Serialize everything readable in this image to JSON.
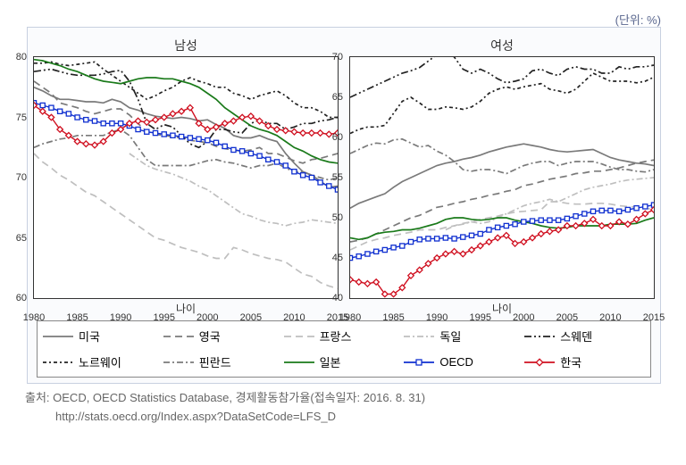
{
  "unit_label": "(단위: %)",
  "panels": {
    "left": {
      "title": "남성",
      "xlabel": "나이"
    },
    "right": {
      "title": "여성",
      "xlabel": "나이"
    }
  },
  "source_line1": "출처: OECD, OECD Statistics Database, 경제활동참가율(접속일자: 2016. 8. 31)",
  "source_line2": "http://stats.oecd.org/Index.aspx?DataSetCode=LFS_D",
  "xaxis": {
    "min": 1980,
    "max": 2015,
    "tick_step": 5
  },
  "yaxis_left": {
    "min": 60,
    "max": 80,
    "tick_step": 5
  },
  "yaxis_right": {
    "min": 40,
    "max": 70,
    "tick_step": 5
  },
  "colors": {
    "usa": "#7a7a7a",
    "uk": "#7a7a7a",
    "france": "#bfbfbf",
    "germany": "#bfbfbf",
    "sweden": "#222222",
    "norway": "#222222",
    "finland": "#7a7a7a",
    "japan": "#1a7a1a",
    "oecd": "#1030d0",
    "korea": "#d01020",
    "border": "#333",
    "frame_bg": "#fafbfd"
  },
  "legend": [
    {
      "label": "미국",
      "style": "solid",
      "color": "#7a7a7a",
      "marker": null
    },
    {
      "label": "영국",
      "style": "longdash",
      "color": "#7a7a7a",
      "marker": null
    },
    {
      "label": "프랑스",
      "style": "longdash",
      "color": "#bfbfbf",
      "marker": null
    },
    {
      "label": "독일",
      "style": "dashdot",
      "color": "#bfbfbf",
      "marker": null
    },
    {
      "label": "스웨덴",
      "style": "dashdotdot",
      "color": "#222222",
      "marker": null
    },
    {
      "label": "노르웨이",
      "style": "shortdashdot",
      "color": "#222222",
      "marker": null
    },
    {
      "label": "핀란드",
      "style": "dashdot",
      "color": "#7a7a7a",
      "marker": null
    },
    {
      "label": "일본",
      "style": "solid",
      "color": "#1a7a1a",
      "marker": null
    },
    {
      "label": "OECD",
      "style": "solid",
      "color": "#1030d0",
      "marker": "square"
    },
    {
      "label": "한국",
      "style": "solid",
      "color": "#d01020",
      "marker": "diamond"
    }
  ],
  "dash_map": {
    "solid": "",
    "longdash": "8 5",
    "dashdot": "7 3 2 3",
    "dashdotdot": "8 3 2 3 2 3",
    "shortdashdot": "4 3 2 3"
  },
  "series": {
    "years": [
      1980,
      1981,
      1982,
      1983,
      1984,
      1985,
      1986,
      1987,
      1988,
      1989,
      1990,
      1991,
      1992,
      1993,
      1994,
      1995,
      1996,
      1997,
      1998,
      1999,
      2000,
      2001,
      2002,
      2003,
      2004,
      2005,
      2006,
      2007,
      2008,
      2009,
      2010,
      2011,
      2012,
      2013,
      2014,
      2015
    ],
    "male": {
      "usa": [
        77.5,
        77.2,
        76.8,
        76.5,
        76.5,
        76.4,
        76.3,
        76.3,
        76.2,
        76.5,
        76.3,
        75.8,
        75.6,
        75.3,
        75.1,
        75.0,
        74.9,
        75.0,
        74.9,
        74.7,
        74.8,
        74.4,
        74.1,
        73.5,
        73.3,
        73.3,
        73.5,
        73.2,
        73.0,
        72.0,
        71.2,
        70.5,
        70.2,
        69.7,
        69.2,
        69.3
      ],
      "uk": [
        78.0,
        77.5,
        77.0,
        76.2,
        76.0,
        75.8,
        75.5,
        75.3,
        75.5,
        75.7,
        75.7,
        75.2,
        74.5,
        73.8,
        73.6,
        73.5,
        73.4,
        73.3,
        73.1,
        73.0,
        72.9,
        72.6,
        72.4,
        72.3,
        72.2,
        72.3,
        72.5,
        72.0,
        72.0,
        71.7,
        71.4,
        71.2,
        71.5,
        71.6,
        71.8,
        72.0
      ],
      "france": [
        72.0,
        71.3,
        70.8,
        70.2,
        69.8,
        69.3,
        68.8,
        68.5,
        68.0,
        67.5,
        67.0,
        66.5,
        66.0,
        65.5,
        65.0,
        64.8,
        64.5,
        64.2,
        64.0,
        63.8,
        63.5,
        63.3,
        63.3,
        64.2,
        64.0,
        63.7,
        63.5,
        63.3,
        63.2,
        63.0,
        62.5,
        62.0,
        61.8,
        61.3,
        61.0,
        60.8
      ],
      "germany": [
        null,
        null,
        null,
        null,
        null,
        null,
        null,
        null,
        null,
        null,
        null,
        72.0,
        71.5,
        71.0,
        70.7,
        70.5,
        70.3,
        70.0,
        69.7,
        69.3,
        69.0,
        68.5,
        68.0,
        67.5,
        67.0,
        66.8,
        66.5,
        66.3,
        66.2,
        66.0,
        66.2,
        66.3,
        66.5,
        66.4,
        66.3,
        66.2
      ],
      "sweden": [
        78.8,
        78.9,
        79.0,
        78.8,
        78.6,
        78.5,
        78.5,
        78.5,
        78.6,
        78.8,
        78.9,
        78.0,
        76.5,
        74.5,
        74.0,
        74.4,
        74.2,
        73.5,
        72.8,
        72.5,
        73.0,
        74.0,
        74.0,
        73.8,
        73.7,
        74.5,
        74.8,
        74.5,
        74.5,
        74.0,
        74.2,
        74.5,
        74.5,
        74.7,
        74.8,
        75.0
      ],
      "norway": [
        79.5,
        79.5,
        79.6,
        79.4,
        79.3,
        79.4,
        79.5,
        79.6,
        79.0,
        78.5,
        78.0,
        77.5,
        77.0,
        76.5,
        76.8,
        77.2,
        77.5,
        78.0,
        78.3,
        78.0,
        77.8,
        77.5,
        77.5,
        77.0,
        76.8,
        76.5,
        76.8,
        77.0,
        77.2,
        76.8,
        76.2,
        75.8,
        75.8,
        75.5,
        75.0,
        75.0
      ],
      "finland": [
        72.5,
        72.8,
        73.0,
        73.2,
        73.3,
        73.5,
        73.5,
        73.5,
        73.5,
        73.8,
        74.0,
        73.5,
        72.5,
        71.5,
        71.0,
        71.0,
        71.0,
        71.0,
        71.0,
        71.2,
        71.4,
        71.5,
        71.3,
        71.2,
        71.0,
        70.8,
        71.0,
        71.0,
        71.2,
        70.8,
        70.5,
        70.5,
        70.2,
        70.0,
        69.8,
        70.0
      ],
      "japan": [
        79.8,
        79.7,
        79.5,
        79.3,
        79.0,
        78.8,
        78.5,
        78.2,
        78.0,
        77.9,
        77.8,
        78.0,
        78.2,
        78.3,
        78.3,
        78.2,
        78.2,
        78.0,
        77.8,
        77.5,
        77.0,
        76.5,
        75.8,
        75.3,
        74.8,
        74.3,
        74.0,
        73.8,
        73.5,
        73.0,
        72.5,
        72.2,
        71.8,
        71.5,
        71.3,
        71.2
      ],
      "oecd": [
        76.2,
        76.0,
        75.8,
        75.5,
        75.3,
        75.0,
        74.8,
        74.7,
        74.5,
        74.5,
        74.5,
        74.3,
        74.0,
        73.8,
        73.7,
        73.6,
        73.5,
        73.4,
        73.3,
        73.2,
        73.1,
        72.9,
        72.6,
        72.3,
        72.2,
        72.0,
        71.8,
        71.5,
        71.3,
        71.0,
        70.5,
        70.2,
        70.0,
        69.6,
        69.3,
        69.0
      ],
      "korea": [
        76.0,
        75.5,
        75.0,
        74.0,
        73.5,
        73.0,
        72.8,
        72.7,
        73.0,
        73.7,
        74.0,
        74.5,
        74.7,
        74.6,
        74.8,
        75.0,
        75.3,
        75.5,
        75.8,
        74.5,
        74.0,
        74.2,
        74.5,
        74.7,
        75.0,
        75.1,
        74.7,
        74.3,
        74.0,
        73.9,
        73.8,
        73.7,
        73.7,
        73.7,
        73.6,
        73.7
      ]
    },
    "female": {
      "usa": [
        51.2,
        51.8,
        52.2,
        52.6,
        53.0,
        53.8,
        54.5,
        55.0,
        55.5,
        56.0,
        56.5,
        56.8,
        57.0,
        57.3,
        57.5,
        57.8,
        58.2,
        58.5,
        58.8,
        59.0,
        59.2,
        59.0,
        58.8,
        58.5,
        58.3,
        58.2,
        58.3,
        58.4,
        58.5,
        58.0,
        57.5,
        57.2,
        57.0,
        56.8,
        56.7,
        56.5
      ],
      "uk": [
        47.0,
        47.2,
        47.5,
        48.0,
        48.5,
        49.0,
        49.5,
        50.0,
        50.3,
        50.8,
        51.3,
        51.5,
        51.8,
        52.0,
        52.3,
        52.5,
        52.8,
        53.0,
        53.3,
        53.5,
        54.0,
        54.2,
        54.5,
        54.8,
        55.0,
        55.2,
        55.5,
        55.6,
        55.8,
        55.8,
        56.0,
        56.2,
        56.5,
        56.8,
        57.0,
        57.2
      ],
      "france": [
        46.0,
        46.5,
        47.0,
        47.3,
        47.5,
        47.8,
        48.0,
        48.2,
        48.5,
        48.5,
        48.5,
        48.8,
        49.0,
        49.3,
        49.5,
        49.8,
        50.0,
        50.2,
        50.5,
        50.7,
        50.8,
        50.9,
        51.0,
        52.0,
        52.0,
        51.8,
        51.7,
        51.7,
        51.8,
        51.8,
        51.7,
        51.5,
        51.4,
        51.3,
        51.2,
        51.0
      ],
      "germany": [
        null,
        null,
        null,
        null,
        null,
        null,
        null,
        null,
        null,
        null,
        null,
        48.5,
        49.0,
        49.2,
        49.5,
        49.3,
        49.5,
        50.0,
        50.5,
        51.0,
        51.5,
        51.8,
        52.0,
        52.3,
        52.0,
        52.5,
        53.0,
        53.5,
        53.8,
        54.0,
        54.2,
        54.5,
        54.7,
        54.8,
        54.9,
        55.0
      ],
      "sweden": [
        65.0,
        65.5,
        66.0,
        66.5,
        67.0,
        67.5,
        68.0,
        68.3,
        68.7,
        69.5,
        70.3,
        70.8,
        70.0,
        68.5,
        68.0,
        68.5,
        68.0,
        67.3,
        66.8,
        67.0,
        67.3,
        68.3,
        68.5,
        68.0,
        67.7,
        68.5,
        68.8,
        68.5,
        68.5,
        68.0,
        68.0,
        68.8,
        68.5,
        68.8,
        68.8,
        69.0
      ],
      "norway": [
        60.5,
        61.0,
        61.3,
        61.3,
        61.5,
        63.0,
        64.5,
        65.0,
        64.3,
        63.5,
        63.5,
        63.8,
        63.7,
        63.5,
        63.8,
        64.5,
        65.5,
        66.0,
        66.3,
        66.0,
        66.3,
        66.5,
        66.7,
        66.0,
        65.8,
        65.5,
        66.0,
        67.0,
        68.0,
        67.5,
        67.0,
        67.0,
        67.0,
        66.8,
        67.0,
        67.5
      ],
      "finland": [
        58.0,
        58.5,
        59.0,
        59.3,
        59.2,
        59.7,
        59.8,
        59.3,
        58.8,
        59.0,
        58.3,
        57.8,
        57.0,
        56.0,
        55.8,
        56.0,
        56.0,
        55.8,
        55.5,
        56.0,
        56.5,
        56.8,
        57.0,
        57.0,
        56.5,
        56.8,
        57.0,
        57.0,
        57.0,
        56.7,
        56.3,
        56.0,
        56.0,
        55.8,
        55.7,
        56.0
      ],
      "japan": [
        47.5,
        47.3,
        47.5,
        48.0,
        48.2,
        48.3,
        48.5,
        48.5,
        48.7,
        49.0,
        49.3,
        49.8,
        50.0,
        50.0,
        49.8,
        49.7,
        49.8,
        50.0,
        50.0,
        49.7,
        49.5,
        49.3,
        49.0,
        48.8,
        48.7,
        48.8,
        49.0,
        49.0,
        49.0,
        49.0,
        49.2,
        49.2,
        49.2,
        49.3,
        49.7,
        50.0
      ],
      "oecd": [
        45.0,
        45.2,
        45.5,
        45.8,
        46.0,
        46.3,
        46.5,
        47.0,
        47.3,
        47.4,
        47.4,
        47.5,
        47.4,
        47.6,
        47.8,
        48.0,
        48.5,
        48.8,
        49.0,
        49.2,
        49.5,
        49.6,
        49.7,
        49.7,
        49.7,
        49.9,
        50.2,
        50.5,
        50.8,
        50.9,
        50.9,
        50.8,
        51.0,
        51.2,
        51.4,
        51.6
      ],
      "korea": [
        42.3,
        42.0,
        41.8,
        42.0,
        40.5,
        40.5,
        41.3,
        42.8,
        43.5,
        44.3,
        45.0,
        45.5,
        45.8,
        45.5,
        46.0,
        46.5,
        47.0,
        47.5,
        47.8,
        46.8,
        47.0,
        47.5,
        48.0,
        48.3,
        48.5,
        49.0,
        49.0,
        49.3,
        49.8,
        49.0,
        49.0,
        49.5,
        49.2,
        49.8,
        50.5,
        51.0
      ]
    }
  }
}
